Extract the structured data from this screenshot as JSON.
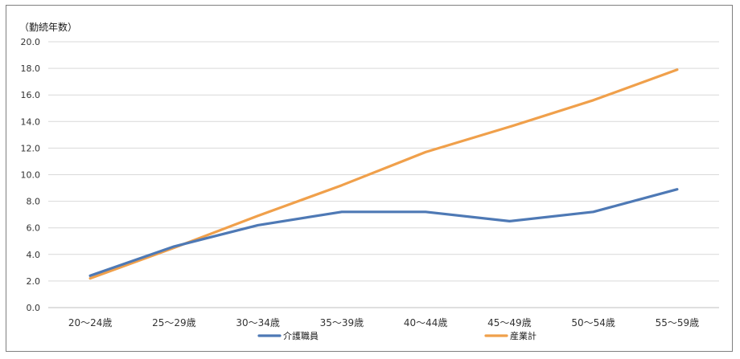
{
  "chart_data": {
    "type": "line",
    "title": "",
    "xlabel": "",
    "ylabel": "（勤続年数）",
    "ylim": [
      0,
      20
    ],
    "yticks": [
      "0.0",
      "2.0",
      "4.0",
      "6.0",
      "8.0",
      "10.0",
      "12.0",
      "14.0",
      "16.0",
      "18.0",
      "20.0"
    ],
    "grid": true,
    "legend_position": "bottom",
    "categories": [
      "20～24歳",
      "25～29歳",
      "30～34歳",
      "35～39歳",
      "40～44歳",
      "45～49歳",
      "50～54歳",
      "55～59歳"
    ],
    "series": [
      {
        "name": "介護職員",
        "color": "#4e79b5",
        "values": [
          2.4,
          4.6,
          6.2,
          7.2,
          7.2,
          6.5,
          7.2,
          8.9
        ]
      },
      {
        "name": "産業計",
        "color": "#f0a04b",
        "values": [
          2.2,
          4.5,
          6.9,
          9.2,
          11.7,
          13.6,
          15.6,
          17.9
        ]
      }
    ]
  }
}
